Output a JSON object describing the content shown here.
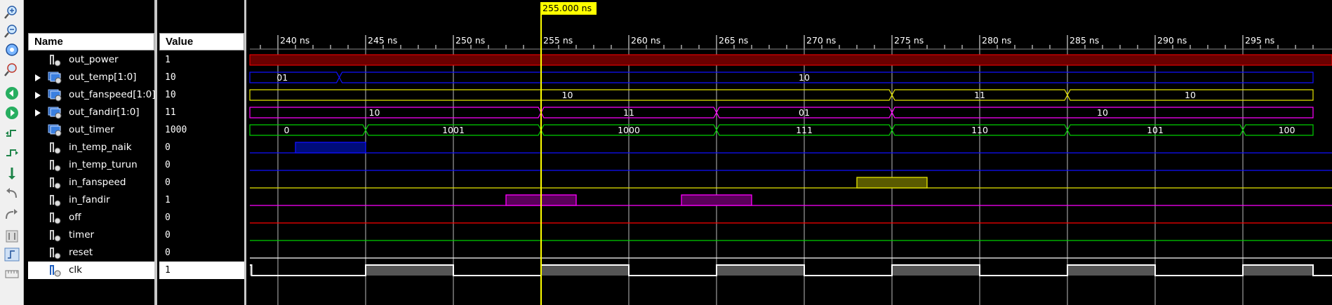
{
  "cursor": {
    "label": "255.000 ns",
    "time_ns": 255.0
  },
  "columns": {
    "name": "Name",
    "value": "Value"
  },
  "toolbar_icons": [
    "zoom-in-icon",
    "zoom-out-icon",
    "zoom-fit-icon",
    "zoom-full-icon",
    "go-to-start-icon",
    "go-to-end-icon",
    "previous-transition-icon",
    "next-transition-icon",
    "add-marker-icon",
    "previous-marker-icon",
    "next-marker-icon",
    "swap-cursors-icon",
    "snap-to-transition-icon",
    "floating-ruler-icon"
  ],
  "time_axis": {
    "start_ns": 237,
    "end_ns": 299,
    "labels": [
      "240 ns",
      "245 ns",
      "250 ns",
      "255 ns",
      "260 ns",
      "265 ns",
      "270 ns",
      "275 ns",
      "280 ns",
      "285 ns",
      "290 ns",
      "295 ns"
    ],
    "ticks_ns": [
      240,
      245,
      250,
      255,
      260,
      265,
      270,
      275,
      280,
      285,
      290,
      295
    ]
  },
  "colors": {
    "background": "#000000",
    "grid": "#ffffff",
    "cursor": "#ffff00",
    "dark_red": "#6b0000",
    "blue": "#1010ff",
    "yellow": "#e6e600",
    "magenta": "#ff00ff",
    "green": "#00d000",
    "red": "#ff0000",
    "clock": "#ffffff"
  },
  "signals": [
    {
      "name": "out_power",
      "value": "1",
      "type": "bit",
      "expandable": false,
      "color": "#ff0000"
    },
    {
      "name": "out_temp[1:0]",
      "value": "10",
      "type": "bus",
      "expandable": true,
      "color": "#1010ff"
    },
    {
      "name": "out_fanspeed[1:0]",
      "value": "10",
      "type": "bus",
      "expandable": true,
      "color": "#e6e600"
    },
    {
      "name": "out_fandir[1:0]",
      "value": "11",
      "type": "bus",
      "expandable": true,
      "color": "#ff00ff"
    },
    {
      "name": "out_timer",
      "value": "1000",
      "type": "bus",
      "expandable": false,
      "color": "#00d000"
    },
    {
      "name": "in_temp_naik",
      "value": "0",
      "type": "bit",
      "expandable": false,
      "color": "#1010ff"
    },
    {
      "name": "in_temp_turun",
      "value": "0",
      "type": "bit",
      "expandable": false,
      "color": "#1010ff"
    },
    {
      "name": "in_fanspeed",
      "value": "0",
      "type": "bit",
      "expandable": false,
      "color": "#e6e600"
    },
    {
      "name": "in_fandir",
      "value": "1",
      "type": "bit",
      "expandable": false,
      "color": "#ff00ff"
    },
    {
      "name": "off",
      "value": "0",
      "type": "bit",
      "expandable": false,
      "color": "#ff0000"
    },
    {
      "name": "timer",
      "value": "0",
      "type": "bit",
      "expandable": false,
      "color": "#00d000"
    },
    {
      "name": "reset",
      "value": "0",
      "type": "bit",
      "expandable": false,
      "color": "#ffffff"
    },
    {
      "name": "clk",
      "value": "1",
      "type": "bit",
      "expandable": false,
      "color": "#ffffff",
      "selected": true
    }
  ],
  "waveforms": {
    "out_power": {
      "kind": "high",
      "t0": 237,
      "t1": 299
    },
    "out_temp[1:0]": {
      "kind": "bus",
      "segments": [
        {
          "t0": 237,
          "t1": 243.5,
          "label": "01"
        },
        {
          "t0": 243.5,
          "t1": 299,
          "label": "10",
          "label_at": 270
        }
      ]
    },
    "out_fanspeed[1:0]": {
      "kind": "bus",
      "segments": [
        {
          "t0": 237,
          "t1": 275,
          "label": "10",
          "label_at": 256.5
        },
        {
          "t0": 275,
          "t1": 285,
          "label": "11"
        },
        {
          "t0": 285,
          "t1": 299,
          "label": "10"
        }
      ]
    },
    "out_fandir[1:0]": {
      "kind": "bus",
      "segments": [
        {
          "t0": 237,
          "t1": 255,
          "label": "10",
          "label_at": 245.5
        },
        {
          "t0": 255,
          "t1": 265,
          "label": "11"
        },
        {
          "t0": 265,
          "t1": 275,
          "label": "01"
        },
        {
          "t0": 275,
          "t1": 299,
          "label": "10",
          "label_at": 287
        }
      ]
    },
    "out_timer": {
      "kind": "bus",
      "segments": [
        {
          "t0": 237,
          "t1": 245,
          "label": "0",
          "label_at": 240.5
        },
        {
          "t0": 245,
          "t1": 255,
          "label": "1001"
        },
        {
          "t0": 255,
          "t1": 265,
          "label": "1000"
        },
        {
          "t0": 265,
          "t1": 275,
          "label": "111"
        },
        {
          "t0": 275,
          "t1": 285,
          "label": "110"
        },
        {
          "t0": 285,
          "t1": 295,
          "label": "101"
        },
        {
          "t0": 295,
          "t1": 299,
          "label": "100",
          "label_at": 297.5
        }
      ]
    },
    "in_temp_naik": {
      "kind": "pulses",
      "pulses": [
        [
          241,
          245
        ]
      ]
    },
    "in_temp_turun": {
      "kind": "pulses",
      "pulses": []
    },
    "in_fanspeed": {
      "kind": "pulses",
      "pulses": [
        [
          273,
          277
        ]
      ]
    },
    "in_fandir": {
      "kind": "pulses",
      "pulses": [
        [
          253,
          257
        ],
        [
          263,
          267
        ]
      ]
    },
    "off": {
      "kind": "pulses",
      "pulses": []
    },
    "timer": {
      "kind": "pulses",
      "pulses": []
    },
    "reset": {
      "kind": "pulses",
      "pulses": []
    },
    "clk": {
      "kind": "clock",
      "high": [
        [
          237,
          238.5
        ],
        [
          245,
          250
        ],
        [
          255,
          260
        ],
        [
          265,
          270
        ],
        [
          275,
          280
        ],
        [
          285,
          290
        ],
        [
          295,
          299
        ]
      ]
    }
  }
}
